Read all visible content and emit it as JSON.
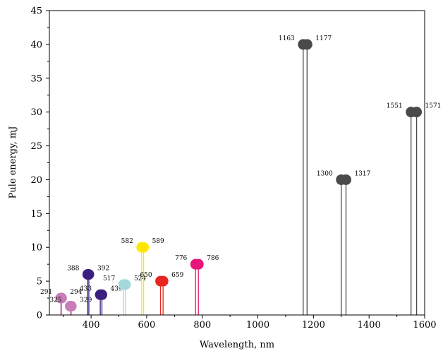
{
  "chart_data": {
    "type": "stem",
    "xlabel": "Wavelength, nm",
    "ylabel": "Pule energy, mJ",
    "xlim": [
      250,
      1600
    ],
    "ylim": [
      0,
      45
    ],
    "xticks": [
      400,
      600,
      800,
      1000,
      1200,
      1400,
      1600
    ],
    "yticks": [
      0,
      5,
      10,
      15,
      20,
      25,
      30,
      35,
      40,
      45
    ],
    "grid": false,
    "groups": [
      {
        "wavelengths": [
          291,
          294
        ],
        "value": 2.5,
        "color": "#c87cb9"
      },
      {
        "wavelengths": [
          325,
          329
        ],
        "value": 1.3,
        "color": "#c87cb9"
      },
      {
        "wavelengths": [
          388,
          392
        ],
        "value": 6,
        "color": "#3b1f7e"
      },
      {
        "wavelengths": [
          433,
          439
        ],
        "value": 3,
        "color": "#3b1f7e"
      },
      {
        "wavelengths": [
          517,
          524
        ],
        "value": 4.5,
        "color": "#a5d8dc"
      },
      {
        "wavelengths": [
          582,
          589
        ],
        "value": 10,
        "color": "#ffe600"
      },
      {
        "wavelengths": [
          650,
          659
        ],
        "value": 5,
        "color": "#e8251e"
      },
      {
        "wavelengths": [
          776,
          786
        ],
        "value": 7.5,
        "color": "#e8157a"
      },
      {
        "wavelengths": [
          1163,
          1177
        ],
        "value": 40,
        "color": "#4a4a4a"
      },
      {
        "wavelengths": [
          1300,
          1317
        ],
        "value": 20,
        "color": "#4a4a4a"
      },
      {
        "wavelengths": [
          1551,
          1571
        ],
        "value": 30,
        "color": "#4a4a4a"
      }
    ]
  }
}
